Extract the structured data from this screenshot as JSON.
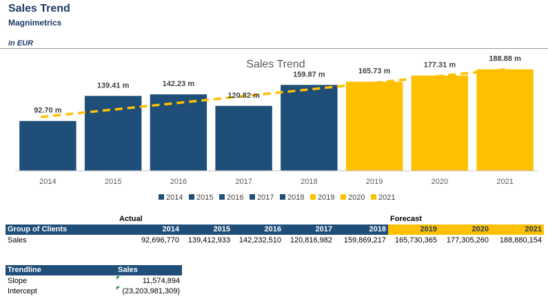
{
  "sheet": {
    "title": "Sales Trend",
    "subtitle": "Magnimetrics",
    "unit": "in EUR"
  },
  "chart_data": {
    "type": "bar",
    "title": "Sales Trend",
    "categories": [
      "2014",
      "2015",
      "2016",
      "2017",
      "2018",
      "2019",
      "2020",
      "2021"
    ],
    "values": [
      92.7,
      139.41,
      142.23,
      120.82,
      159.87,
      165.73,
      177.31,
      188.88
    ],
    "value_labels": [
      "92.70 m",
      "139.41 m",
      "142.23 m",
      "120.82 m",
      "159.87 m",
      "165.73 m",
      "177.31 m",
      "188.88 m"
    ],
    "series_colors": [
      "#1f4e79",
      "#1f4e79",
      "#1f4e79",
      "#1f4e79",
      "#1f4e79",
      "#ffc000",
      "#ffc000",
      "#ffc000"
    ],
    "legend": [
      "2014",
      "2015",
      "2016",
      "2017",
      "2018",
      "2019",
      "2020",
      "2021"
    ],
    "legend_position": "bottom",
    "trendline": {
      "style": "dashed",
      "color": "#ffc000",
      "type": "linear"
    },
    "ylim": [
      0,
      200
    ],
    "grid": false
  },
  "table": {
    "actual_label": "Actual",
    "forecast_label": "Forecast",
    "header_label": "Group of Clients",
    "years": [
      "2014",
      "2015",
      "2016",
      "2017",
      "2018",
      "2019",
      "2020",
      "2021"
    ],
    "row_label": "Sales",
    "values": [
      "92,696,770",
      "139,412,933",
      "142,232,510",
      "120,816,982",
      "159,869,217",
      "165,730,365",
      "177,305,260",
      "188,880,154"
    ]
  },
  "trendline_table": {
    "header": "Trendline",
    "value_header": "Sales",
    "rows": [
      {
        "label": "Slope",
        "value": "11,574,894"
      },
      {
        "label": "Intercept",
        "value": "(23,203,981,309)"
      }
    ]
  }
}
